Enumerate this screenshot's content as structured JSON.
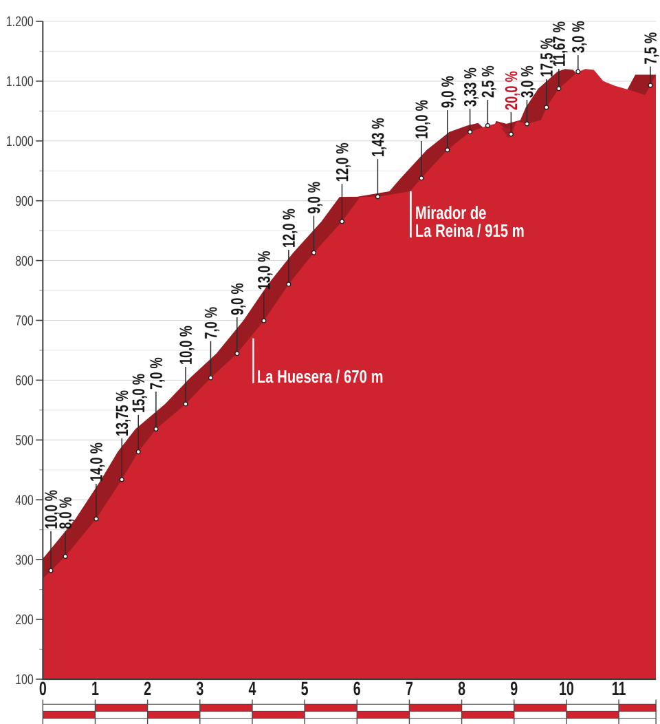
{
  "colors": {
    "profile_fill": "#cf242f",
    "profile_shadow": "#9a1b21",
    "dip_shadow": "#a32227",
    "grid_major": "#d8d8d8",
    "grid_minor": "#e7e7e7",
    "axis_line": "#3d3d3d",
    "tick_label": "#3f3f3f",
    "km_label": "#1c1c1c",
    "gradient_label": "#141414",
    "gradient_label_red": "#c81022",
    "marker_line": "#2a2a2a",
    "dot_fill": "#ffffff",
    "dot_ring": "#1d1d1d",
    "landmark_text": "#ffffff",
    "ruler_red": "#cf242f",
    "ruler_white": "#ffffff",
    "ruler_border": "#4a4a4a"
  },
  "chart_data": {
    "type": "area",
    "title": "",
    "xlabel": "",
    "ylabel": "",
    "xlim": [
      0,
      11.71
    ],
    "ylim": [
      100,
      1200
    ],
    "grid": "horizontal, every 50 m (light), labels every 100 m",
    "legend_position": "none",
    "y_ticks": [
      {
        "value": 1200,
        "label": "1.200"
      },
      {
        "value": 1100,
        "label": "1.100"
      },
      {
        "value": 1000,
        "label": "1.000"
      },
      {
        "value": 900,
        "label": "900"
      },
      {
        "value": 800,
        "label": "800"
      },
      {
        "value": 700,
        "label": "700"
      },
      {
        "value": 600,
        "label": "600"
      },
      {
        "value": 500,
        "label": "500"
      },
      {
        "value": 400,
        "label": "400"
      },
      {
        "value": 300,
        "label": "300"
      },
      {
        "value": 200,
        "label": "200"
      },
      {
        "value": 100,
        "label": "100"
      }
    ],
    "x_ticks": [
      {
        "value": 0,
        "label": "0"
      },
      {
        "value": 1,
        "label": "1"
      },
      {
        "value": 2,
        "label": "2"
      },
      {
        "value": 3,
        "label": "3"
      },
      {
        "value": 4,
        "label": "4"
      },
      {
        "value": 5,
        "label": "5"
      },
      {
        "value": 6,
        "label": "6"
      },
      {
        "value": 7,
        "label": "7"
      },
      {
        "value": 8,
        "label": "8"
      },
      {
        "value": 9,
        "label": "9"
      },
      {
        "value": 10,
        "label": "10"
      },
      {
        "value": 11,
        "label": "11"
      }
    ],
    "profile": [
      {
        "km": 0.0,
        "elev": 268.5
      },
      {
        "km": 0.154,
        "elev": 281.6,
        "label": "10,0 %",
        "label_anchor_elev": 347.5
      },
      {
        "km": 0.429,
        "elev": 305.3,
        "label": "8,0 %",
        "label_anchor_elev": 347.5
      },
      {
        "km": 1.018,
        "elev": 368.1,
        "label": "14,0 %",
        "label_anchor_elev": 426.8
      },
      {
        "km": 1.509,
        "elev": 433.8,
        "label": "13,75 %",
        "label_anchor_elev": 502.6
      },
      {
        "km": 1.824,
        "elev": 480.2,
        "label": "15,0 %",
        "label_anchor_elev": 541.9
      },
      {
        "km": 2.161,
        "elev": 518.2,
        "label": "7,0 %",
        "label_anchor_elev": 580.9
      },
      {
        "km": 2.727,
        "elev": 560.1,
        "label": "10,0 %",
        "label_anchor_elev": 622.3
      },
      {
        "km": 3.206,
        "elev": 603.9,
        "label": "7,0 %",
        "label_anchor_elev": 665.3
      },
      {
        "km": 3.709,
        "elev": 644.6,
        "label": "9,0 %",
        "label_anchor_elev": 705.1
      },
      {
        "km": 4.221,
        "elev": 699.4,
        "label": "13,0 %",
        "label_anchor_elev": 747.3
      },
      {
        "km": 4.695,
        "elev": 760.4,
        "label": "12,0 %",
        "label_anchor_elev": 817.9
      },
      {
        "km": 5.175,
        "elev": 813.1,
        "label": "9,0 %",
        "label_anchor_elev": 874.7
      },
      {
        "km": 5.714,
        "elev": 865.3,
        "label": "12,0 %",
        "label_anchor_elev": 928.1
      },
      {
        "km": 6.061,
        "elev": 906.5
      },
      {
        "km": 6.396,
        "elev": 906.7,
        "label": "1,43 %",
        "label_anchor_elev": 969.7
      },
      {
        "km": 7.012,
        "elev": 915.8
      },
      {
        "km": 7.23,
        "elev": 937.9,
        "label": "10,0 %",
        "label_anchor_elev": 999.7
      },
      {
        "km": 7.727,
        "elev": 985.0,
        "label": "9,0 %",
        "label_anchor_elev": 1051.5
      },
      {
        "km": 8.158,
        "elev": 1015.1,
        "label": "3,33 %",
        "label_anchor_elev": 1053.8
      },
      {
        "km": 8.496,
        "elev": 1025.7,
        "label": "2,5 %",
        "label_anchor_elev": 1068.7
      },
      {
        "km": 8.707,
        "elev": 1029.9
      },
      {
        "km": 8.943,
        "elev": 1011.3,
        "label": "20,0 %",
        "label_anchor_elev": 1048.0,
        "label_red": true
      },
      {
        "km": 9.053,
        "elev": 1033.2
      },
      {
        "km": 9.246,
        "elev": 1028.6,
        "label": "3,0 %",
        "label_anchor_elev": 1068.7
      },
      {
        "km": 9.513,
        "elev": 1034.9
      },
      {
        "km": 9.618,
        "elev": 1056.2,
        "label": "17,5 %",
        "label_anchor_elev": 1103.2
      },
      {
        "km": 9.855,
        "elev": 1087.5,
        "label": "11,67 %",
        "label_anchor_elev": 1120.5
      },
      {
        "km": 10.222,
        "elev": 1115.9,
        "label": "3,0 %",
        "label_anchor_elev": 1143.5
      },
      {
        "km": 10.366,
        "elev": 1120.2
      },
      {
        "km": 10.524,
        "elev": 1118.9
      },
      {
        "km": 10.704,
        "elev": 1100.0
      },
      {
        "km": 10.923,
        "elev": 1092.3
      },
      {
        "km": 11.177,
        "elev": 1086.0
      },
      {
        "km": 11.502,
        "elev": 1077.0
      },
      {
        "km": 11.603,
        "elev": 1093.0,
        "label": "7,5 %",
        "label_anchor_elev": 1124.5
      },
      {
        "km": 11.71,
        "elev": 1110.7
      }
    ],
    "dip_shadow_triangle": [
      {
        "km": 8.744,
        "elev": 1022.2
      },
      {
        "km": 9.007,
        "elev": 1019.9
      },
      {
        "km": 8.899,
        "elev": 1004.6
      }
    ],
    "landmarks": [
      {
        "lines": [
          "La Huesera / 670 m"
        ],
        "tick_km": 4.018,
        "tick_elev_top": 670.0,
        "tick_elev_bottom": 595.0,
        "text_km": 4.09,
        "text_elev": 596.0
      },
      {
        "lines": [
          "Mirador de",
          "La Reina / 915 m"
        ],
        "tick_km": 7.026,
        "tick_elev_top": 916.0,
        "tick_elev_bottom": 838.5,
        "text_km": 7.11,
        "text_elev": 870.0
      }
    ],
    "ruler": {
      "row1_red_on": "odd km blocks",
      "row2_red_on": "even km blocks",
      "blocks_end_km": 11.71
    }
  }
}
